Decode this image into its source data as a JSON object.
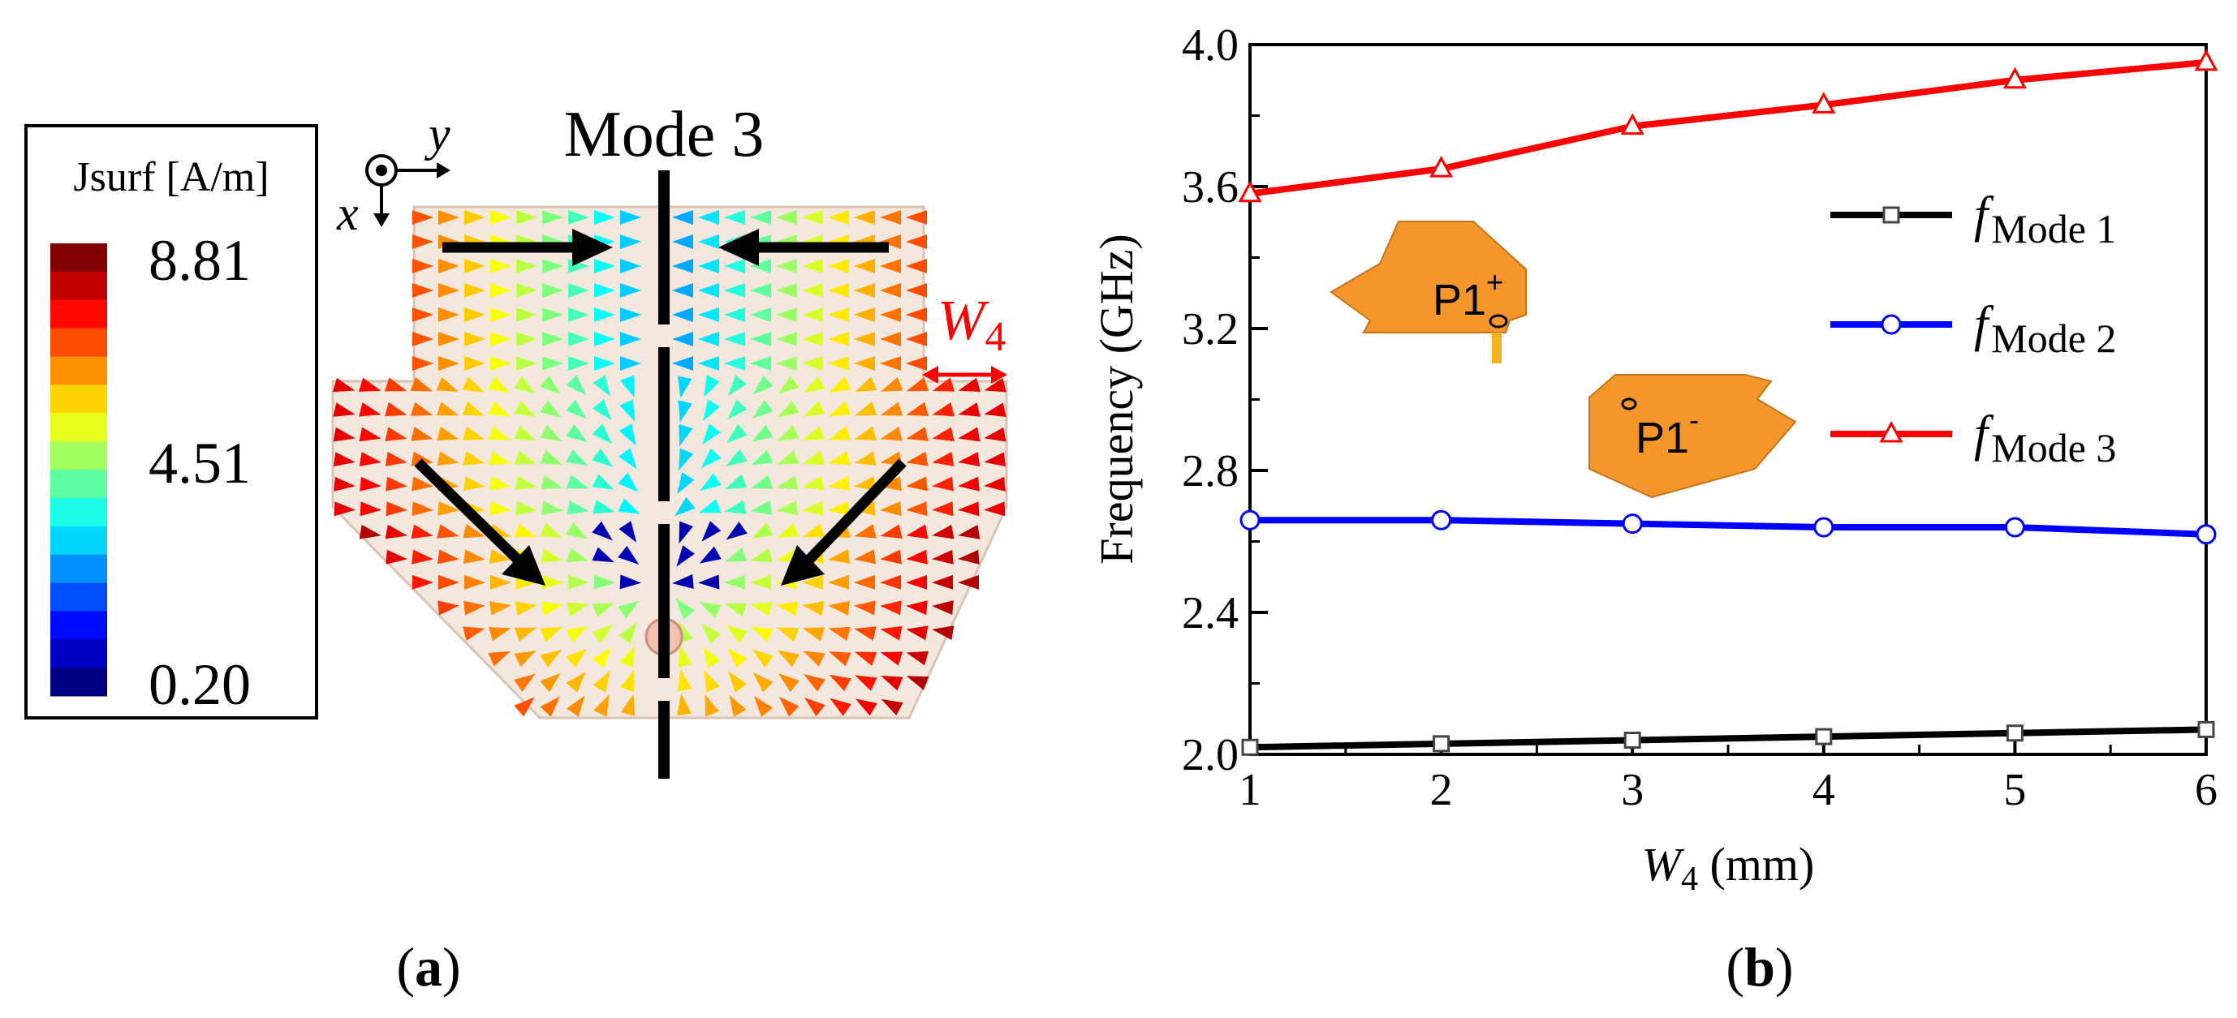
{
  "panel_a": {
    "mode_title": "Mode 3",
    "colorbar": {
      "title": "Jsurf [A/m]",
      "max_label": "8.81",
      "mid_label": "4.51",
      "min_label": "0.20",
      "max_value": 8.81,
      "mid_value": 4.51,
      "min_value": 0.2
    },
    "axes_labels": {
      "x": "x",
      "y": "y"
    },
    "dimension_label": {
      "main": "W",
      "sub": "4"
    },
    "caption": {
      "open": "(",
      "letter": "a",
      "close": ")"
    }
  },
  "panel_b": {
    "caption": {
      "open": "(",
      "letter": "b",
      "close": ")"
    },
    "inset": {
      "port_plus": {
        "main": "P1",
        "sup": "+"
      },
      "port_minus": {
        "main": "P1",
        "sup": "-"
      }
    }
  },
  "chart_data": {
    "type": "line",
    "title": "",
    "xlabel": {
      "main": "W",
      "sub": "4",
      "unit": " (mm)"
    },
    "ylabel": "Frequency (GHz)",
    "x": [
      1,
      2,
      3,
      4,
      5,
      6
    ],
    "xlim": [
      1,
      6
    ],
    "ylim": [
      2.0,
      4.0
    ],
    "xticks": [
      "1",
      "2",
      "3",
      "4",
      "5",
      "6"
    ],
    "yticks": [
      "2.0",
      "2.4",
      "2.8",
      "3.2",
      "3.6",
      "4.0"
    ],
    "legend_position": "right",
    "series": [
      {
        "name": "f Mode 1",
        "label_main": "f",
        "label_sub": "Mode 1",
        "color": "#000000",
        "marker": "square",
        "values": [
          2.02,
          2.03,
          2.04,
          2.05,
          2.06,
          2.07
        ]
      },
      {
        "name": "f Mode 2",
        "label_main": "f",
        "label_sub": "Mode 2",
        "color": "#0000ff",
        "marker": "circle",
        "values": [
          2.66,
          2.66,
          2.65,
          2.64,
          2.64,
          2.62
        ]
      },
      {
        "name": "f Mode 3",
        "label_main": "f",
        "label_sub": "Mode 3",
        "color": "#ff0000",
        "marker": "triangle",
        "values": [
          3.58,
          3.65,
          3.77,
          3.83,
          3.9,
          3.95
        ]
      }
    ]
  }
}
